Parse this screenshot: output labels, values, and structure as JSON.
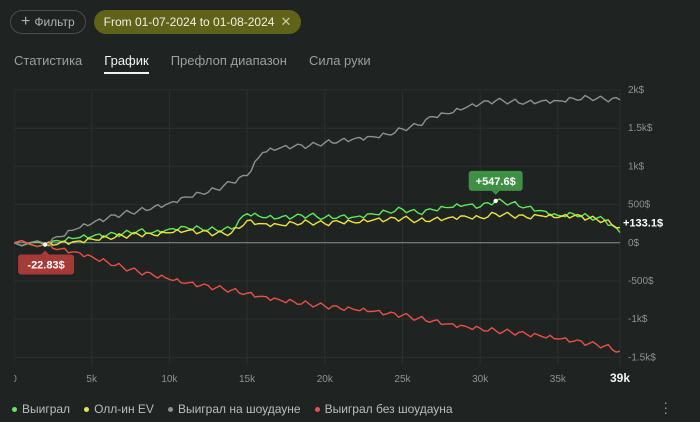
{
  "filter": {
    "button_label": "Фильтр",
    "date_range": "From 01-07-2024 to 01-08-2024"
  },
  "tabs": [
    {
      "label": "Статистика",
      "active": false
    },
    {
      "label": "График",
      "active": true
    },
    {
      "label": "Префлоп диапазон",
      "active": false
    },
    {
      "label": "Сила руки",
      "active": false
    }
  ],
  "chart_data": {
    "type": "line",
    "xlabel": "",
    "ylabel": "",
    "xlim": [
      0,
      39000
    ],
    "ylim": [
      -1600,
      2000
    ],
    "x_ticks": [
      {
        "value": 0,
        "label": "0"
      },
      {
        "value": 5000,
        "label": "5k"
      },
      {
        "value": 10000,
        "label": "10k"
      },
      {
        "value": 15000,
        "label": "15k"
      },
      {
        "value": 20000,
        "label": "20k"
      },
      {
        "value": 25000,
        "label": "25k"
      },
      {
        "value": 30000,
        "label": "30k"
      },
      {
        "value": 35000,
        "label": "35k"
      },
      {
        "value": 39000,
        "label": "39k"
      }
    ],
    "y_ticks": [
      {
        "value": 2000,
        "label": "2k$"
      },
      {
        "value": 1500,
        "label": "1.5k$"
      },
      {
        "value": 1000,
        "label": "1k$"
      },
      {
        "value": 500,
        "label": "500$"
      },
      {
        "value": 0,
        "label": "0$"
      },
      {
        "value": -500,
        "label": "-500$"
      },
      {
        "value": -1000,
        "label": "-1k$"
      },
      {
        "value": -1500,
        "label": "-1.5k$"
      }
    ],
    "grid": true,
    "legend_position": "bottom-left",
    "series": [
      {
        "name": "Выиграл",
        "color": "#5ee85a",
        "x": [
          0,
          2000,
          3000,
          4000,
          5000,
          6000,
          7000,
          8000,
          9000,
          10000,
          11000,
          12000,
          13000,
          14000,
          15000,
          16000,
          17000,
          18000,
          19000,
          20000,
          21000,
          22000,
          23000,
          24000,
          25000,
          26000,
          27000,
          28000,
          29000,
          30000,
          31000,
          32000,
          33000,
          34000,
          35000,
          36000,
          37000,
          38000,
          39000
        ],
        "y": [
          0,
          -23,
          20,
          60,
          80,
          100,
          120,
          160,
          140,
          180,
          210,
          190,
          170,
          180,
          380,
          330,
          320,
          340,
          360,
          330,
          350,
          340,
          380,
          410,
          440,
          390,
          430,
          460,
          490,
          470,
          548,
          520,
          470,
          420,
          360,
          380,
          340,
          300,
          133
        ]
      },
      {
        "name": "Олл-ин EV",
        "color": "#ebe43c",
        "x": [
          0,
          2000,
          3000,
          4000,
          5000,
          6000,
          7000,
          8000,
          9000,
          10000,
          11000,
          12000,
          13000,
          14000,
          15000,
          16000,
          17000,
          18000,
          19000,
          20000,
          21000,
          22000,
          23000,
          24000,
          25000,
          26000,
          27000,
          28000,
          29000,
          30000,
          31000,
          32000,
          33000,
          34000,
          35000,
          36000,
          37000,
          38000,
          39000
        ],
        "y": [
          0,
          -23,
          5,
          20,
          50,
          70,
          90,
          110,
          100,
          130,
          150,
          140,
          120,
          130,
          290,
          250,
          240,
          260,
          270,
          250,
          270,
          260,
          290,
          300,
          320,
          290,
          310,
          330,
          350,
          330,
          380,
          360,
          330,
          350,
          330,
          350,
          320,
          290,
          200
        ]
      },
      {
        "name": "Выиграл на шоудауне",
        "color": "#8e918f",
        "x": [
          0,
          2000,
          3000,
          4000,
          5000,
          6000,
          7000,
          8000,
          9000,
          10000,
          11000,
          12000,
          13000,
          14000,
          15000,
          16000,
          17000,
          18000,
          19000,
          20000,
          21000,
          22000,
          23000,
          24000,
          25000,
          26000,
          27000,
          28000,
          29000,
          30000,
          31000,
          32000,
          33000,
          34000,
          35000,
          36000,
          37000,
          38000,
          39000
        ],
        "y": [
          0,
          -10,
          80,
          180,
          250,
          320,
          380,
          420,
          470,
          520,
          600,
          650,
          700,
          790,
          880,
          1180,
          1230,
          1260,
          1270,
          1310,
          1340,
          1370,
          1390,
          1420,
          1490,
          1540,
          1650,
          1690,
          1760,
          1820,
          1860,
          1850,
          1840,
          1860,
          1860,
          1890,
          1900,
          1880,
          1870
        ]
      },
      {
        "name": "Выиграл без шоудауна",
        "color": "#e8504a",
        "x": [
          0,
          2000,
          3000,
          4000,
          5000,
          6000,
          7000,
          8000,
          9000,
          10000,
          11000,
          12000,
          13000,
          14000,
          15000,
          16000,
          17000,
          18000,
          19000,
          20000,
          21000,
          22000,
          23000,
          24000,
          25000,
          26000,
          27000,
          28000,
          29000,
          30000,
          31000,
          32000,
          33000,
          34000,
          35000,
          36000,
          37000,
          38000,
          39000
        ],
        "y": [
          0,
          -23,
          -80,
          -120,
          -180,
          -250,
          -320,
          -380,
          -430,
          -480,
          -530,
          -560,
          -590,
          -620,
          -660,
          -700,
          -740,
          -770,
          -800,
          -830,
          -860,
          -880,
          -900,
          -930,
          -950,
          -990,
          -1020,
          -1060,
          -1090,
          -1120,
          -1150,
          -1170,
          -1200,
          -1230,
          -1260,
          -1290,
          -1320,
          -1350,
          -1420
        ]
      }
    ],
    "annotations": [
      {
        "label": "+547.6$",
        "x": 31000,
        "y": 548,
        "color": "#3f8f44"
      },
      {
        "label": "-22.83$",
        "x": 2000,
        "y": -23,
        "color": "#a63a37"
      },
      {
        "label": "+133.1$",
        "x": 39000,
        "y": 133
      }
    ]
  }
}
